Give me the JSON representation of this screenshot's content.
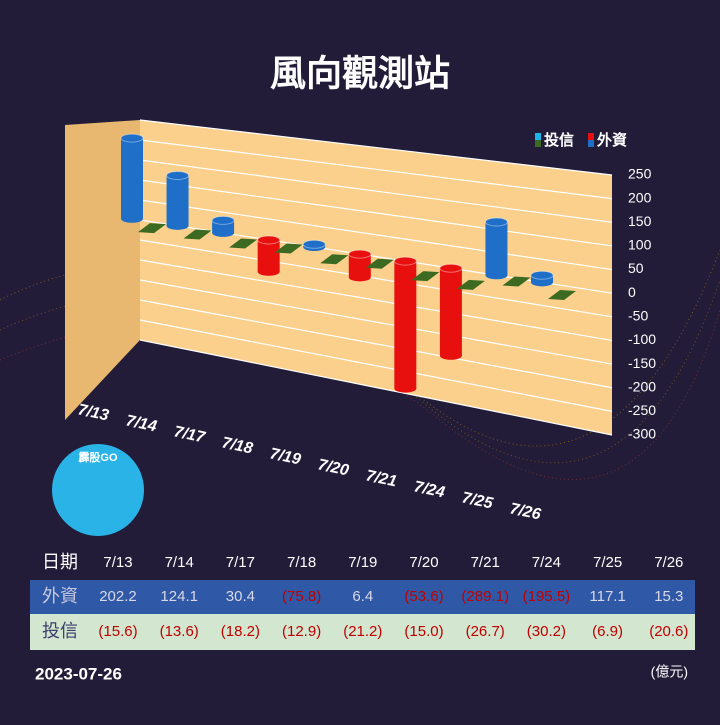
{
  "chart_data": {
    "type": "bar3d",
    "title": "風向觀測站",
    "logo_text": "霹股GO",
    "date": "2023-07-26",
    "unit": "(億元)",
    "table_header": "日期",
    "categories": [
      "7/13",
      "7/14",
      "7/17",
      "7/18",
      "7/19",
      "7/20",
      "7/21",
      "7/24",
      "7/25",
      "7/26"
    ],
    "series": [
      {
        "name": "外資",
        "color": "#1f6fc8",
        "negative_color": "#e8100f",
        "row_color": "#2f58a6",
        "values": [
          202.2,
          124.1,
          30.4,
          -75.8,
          6.4,
          -53.6,
          -289.1,
          -195.5,
          117.1,
          15.3
        ],
        "value_labels": [
          "202.2",
          "124.1",
          "30.4",
          "(75.8)",
          "6.4",
          "(53.6)",
          "(289.1)",
          "(195.5)",
          "117.1",
          "15.3"
        ]
      },
      {
        "name": "投信",
        "color": "#3c6a20",
        "negative_color": "#3c6a20",
        "row_color": "#d3e6cf",
        "values": [
          -15.6,
          -13.6,
          -18.2,
          -12.9,
          -21.2,
          -15.0,
          -26.7,
          -30.2,
          -6.9,
          -20.6
        ],
        "value_labels": [
          "(15.6)",
          "(13.6)",
          "(18.2)",
          "(12.9)",
          "(21.2)",
          "(15.0)",
          "(26.7)",
          "(30.2)",
          "(6.9)",
          "(20.6)"
        ]
      }
    ],
    "legend_order": [
      1,
      0
    ],
    "ylim": [
      -300,
      250
    ],
    "yticks": [
      250,
      200,
      150,
      100,
      50,
      0,
      -50,
      -100,
      -150,
      -200,
      -250,
      -300
    ],
    "grid": true
  }
}
